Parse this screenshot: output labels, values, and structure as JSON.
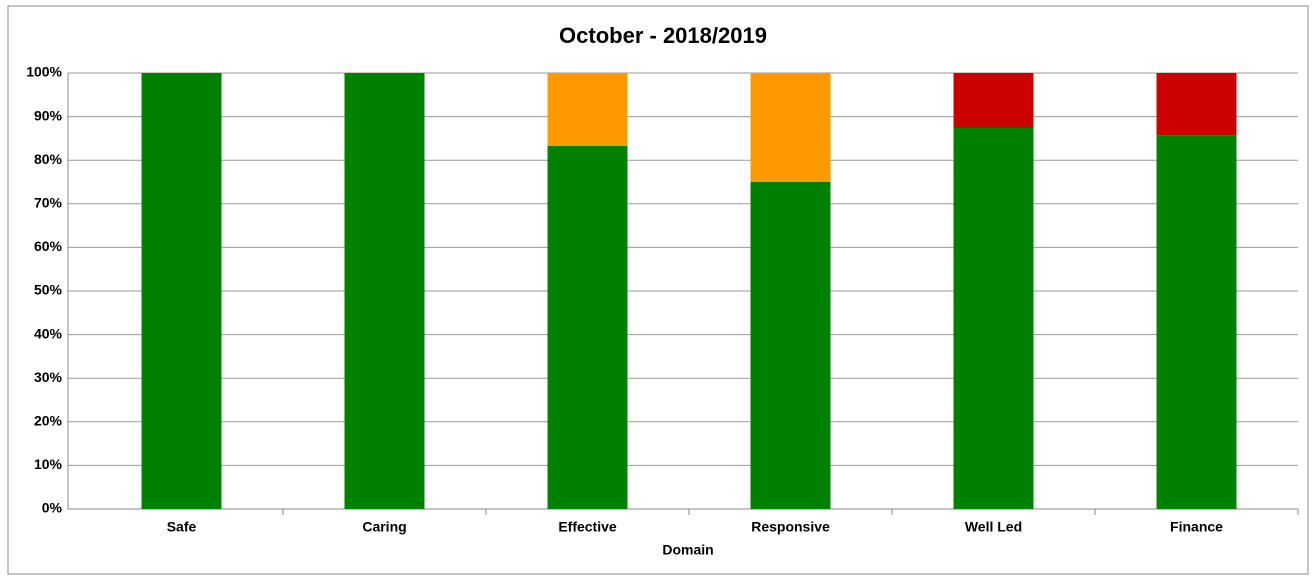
{
  "chart_data": {
    "type": "stacked_bar",
    "title": "October - 2018/2019",
    "x_label": "Domain",
    "categories": [
      "Safe",
      "Caring",
      "Effective",
      "Responsive",
      "Well Led",
      "Finance"
    ],
    "series": [
      {
        "color": "#008000",
        "values": [
          100,
          100,
          83.3,
          75,
          87.5,
          85.7
        ]
      },
      {
        "color": "#ff9900",
        "values": [
          0,
          0,
          16.7,
          25,
          0,
          0
        ]
      },
      {
        "color": "#cc0000",
        "values": [
          0,
          0,
          0,
          0,
          12.5,
          14.3
        ]
      }
    ],
    "ylim": [
      0,
      100
    ],
    "yticks": [
      {
        "value": 0,
        "label": "0%"
      },
      {
        "value": 10,
        "label": "10%"
      },
      {
        "value": 20,
        "label": "20%"
      },
      {
        "value": 30,
        "label": "30%"
      },
      {
        "value": 40,
        "label": "40%"
      },
      {
        "value": 50,
        "label": "50%"
      },
      {
        "value": 60,
        "label": "60%"
      },
      {
        "value": 70,
        "label": "70%"
      },
      {
        "value": 80,
        "label": "80%"
      },
      {
        "value": 90,
        "label": "90%"
      },
      {
        "value": 100,
        "label": "100%"
      }
    ],
    "grid": true
  }
}
